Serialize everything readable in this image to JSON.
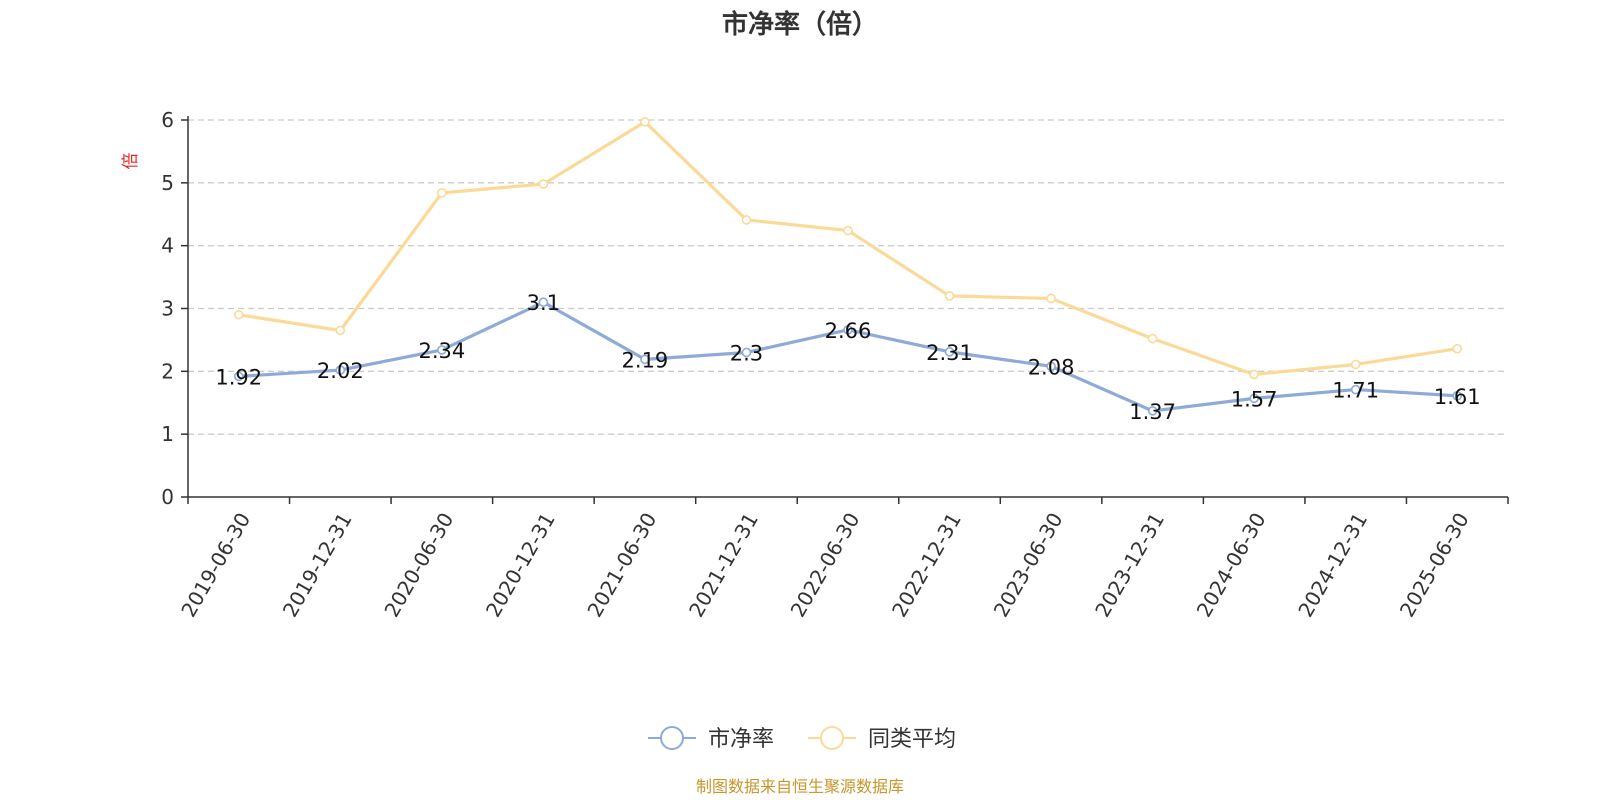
{
  "chart_data": {
    "type": "line",
    "title": "市净率（倍）",
    "ylabel": "倍",
    "xlabel": "",
    "ylim": [
      0,
      6
    ],
    "yticks": [
      0,
      1,
      2,
      3,
      4,
      5,
      6
    ],
    "grid": true,
    "legend_position": "bottom-center",
    "categories": [
      "2019-06-30",
      "2019-12-31",
      "2020-06-30",
      "2020-12-31",
      "2021-06-30",
      "2021-12-31",
      "2022-06-30",
      "2022-12-31",
      "2023-06-30",
      "2023-12-31",
      "2024-06-30",
      "2024-12-31",
      "2025-06-30"
    ],
    "series": [
      {
        "name": "市净率",
        "color": "#8eaad8",
        "values": [
          1.92,
          2.02,
          2.34,
          3.1,
          2.19,
          2.3,
          2.66,
          2.31,
          2.08,
          1.37,
          1.57,
          1.71,
          1.61
        ],
        "labels": [
          "1.92",
          "2.02",
          "2.34",
          "3.1",
          "2.19",
          "2.3",
          "2.66",
          "2.31",
          "2.08",
          "1.37",
          "1.57",
          "1.71",
          "1.61"
        ]
      },
      {
        "name": "同类平均",
        "color": "#fbd996",
        "values": [
          2.9,
          2.65,
          4.84,
          4.98,
          5.97,
          4.41,
          4.24,
          3.2,
          3.16,
          2.52,
          1.95,
          2.11,
          2.36
        ]
      }
    ]
  },
  "source_note": "制图数据来自恒生聚源数据库",
  "colors": {
    "axis": "#333333",
    "grid": "#cccccc",
    "ylabel": "#ee2222",
    "source": "#c8962a"
  }
}
